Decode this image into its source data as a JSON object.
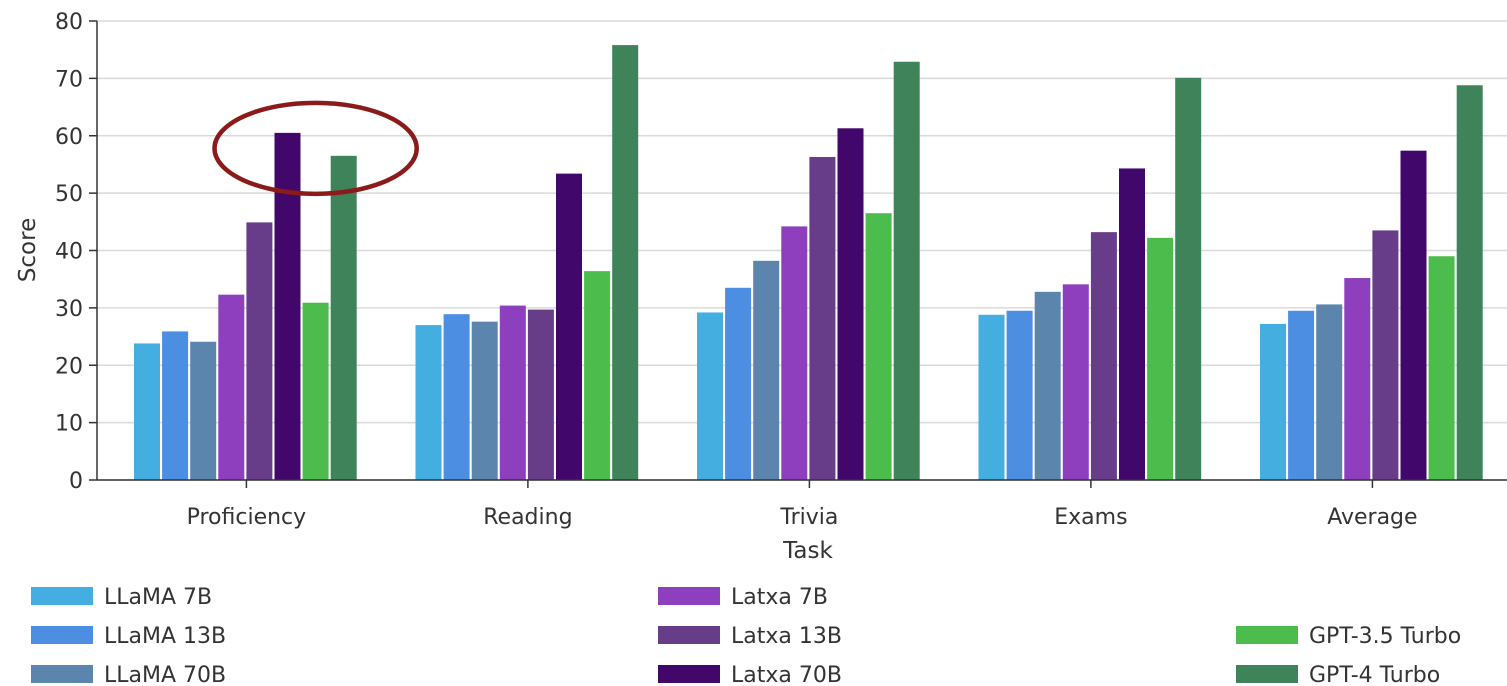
{
  "chart_data": {
    "type": "bar",
    "xlabel": "Task",
    "ylabel": "Score",
    "ylim": [
      0,
      80
    ],
    "yticks": [
      0,
      10,
      20,
      30,
      40,
      50,
      60,
      70,
      80
    ],
    "grid": "horizontal",
    "legend_placement": "bottom",
    "categories": [
      "Proficiency",
      "Reading",
      "Trivia",
      "Exams",
      "Average"
    ],
    "series": [
      {
        "name": "LLaMA 7B",
        "color": "#45aee0",
        "values": [
          23.8,
          27.0,
          29.2,
          28.8,
          27.2
        ]
      },
      {
        "name": "LLaMA 13B",
        "color": "#4b8ee2",
        "values": [
          25.9,
          28.9,
          33.5,
          29.5,
          29.5
        ]
      },
      {
        "name": "LLaMA 70B",
        "color": "#5b85ad",
        "values": [
          24.1,
          27.6,
          38.2,
          32.8,
          30.6
        ]
      },
      {
        "name": "Latxa 7B",
        "color": "#8d3fbd",
        "values": [
          32.3,
          30.4,
          44.2,
          34.1,
          35.2
        ]
      },
      {
        "name": "Latxa 13B",
        "color": "#673d8a",
        "values": [
          44.9,
          29.7,
          56.3,
          43.2,
          43.5
        ]
      },
      {
        "name": "Latxa 70B",
        "color": "#41076b",
        "values": [
          60.5,
          53.4,
          61.3,
          54.3,
          57.4
        ]
      },
      {
        "name": "GPT-3.5 Turbo",
        "color": "#4cbd4c",
        "values": [
          30.9,
          36.4,
          46.5,
          42.2,
          39.0
        ]
      },
      {
        "name": "GPT-4 Turbo",
        "color": "#3f835b",
        "values": [
          56.5,
          75.8,
          72.9,
          70.1,
          68.8
        ]
      }
    ],
    "annotation": {
      "shape": "ellipse",
      "color": "#8b1a1a",
      "category": "Proficiency",
      "series": [
        "Latxa 70B",
        "GPT-4 Turbo"
      ]
    }
  }
}
